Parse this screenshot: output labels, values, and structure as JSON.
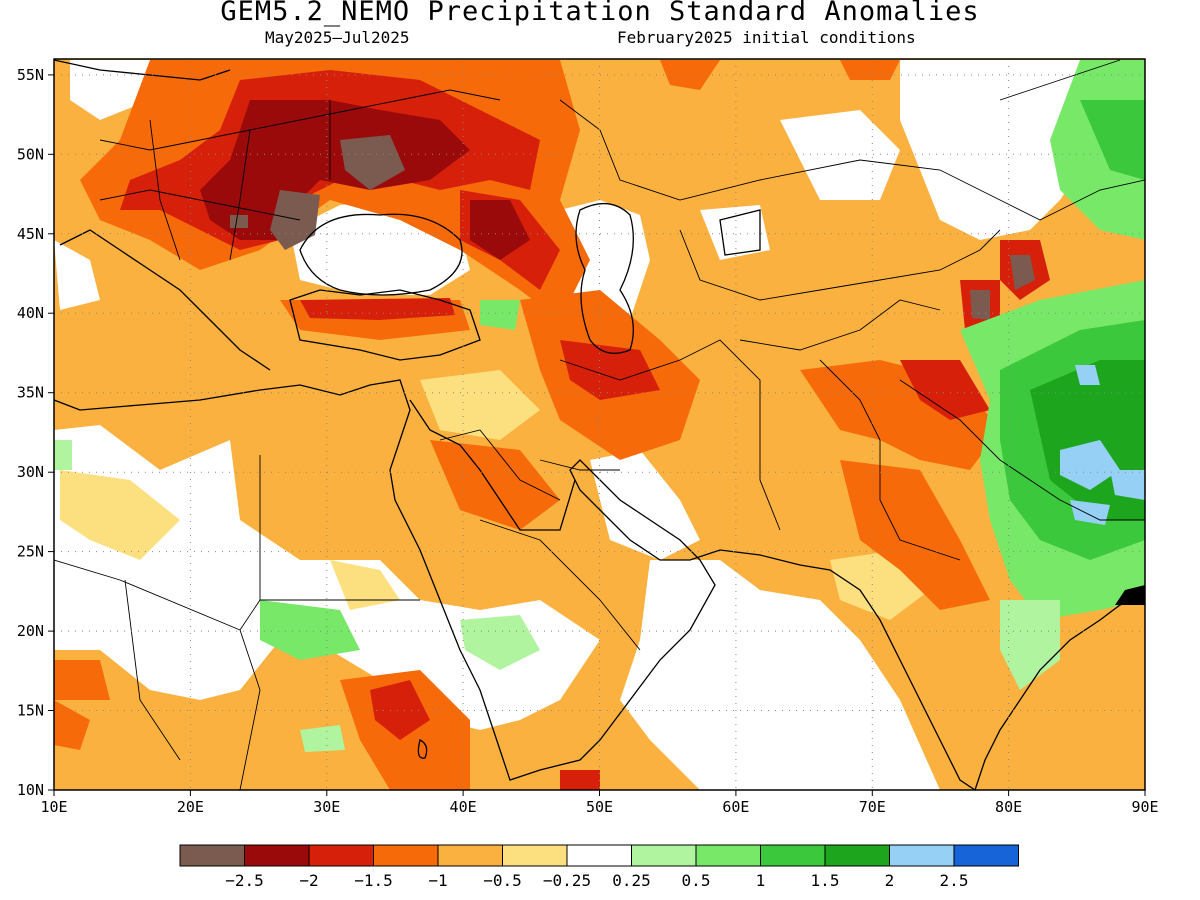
{
  "title": "GEM5.2_NEMO Precipitation Standard Anomalies",
  "subtitle_left": "May2025–Jul2025",
  "subtitle_right": "February2025 initial conditions",
  "map": {
    "lon_range": [
      10,
      90
    ],
    "lat_range": [
      10,
      56
    ],
    "x_ticks": [
      "10E",
      "20E",
      "30E",
      "40E",
      "50E",
      "60E",
      "70E",
      "80E",
      "90E"
    ],
    "y_ticks": [
      "10N",
      "15N",
      "20N",
      "25N",
      "30N",
      "35N",
      "40N",
      "45N",
      "50N",
      "55N"
    ],
    "grid": "dotted"
  },
  "colorbar": {
    "colors": [
      "#7b5a50",
      "#9b0a0a",
      "#d7200a",
      "#f66a0a",
      "#fbb140",
      "#fce080",
      "#ffffff",
      "#b0f4a0",
      "#78e868",
      "#3cc83c",
      "#1ea51e",
      "#96d0f5",
      "#1664d8"
    ],
    "labels": [
      "−2.5",
      "−2",
      "−1.5",
      "−1",
      "−0.5",
      "−0.25",
      "0.25",
      "0.5",
      "1",
      "1.5",
      "2",
      "2.5"
    ]
  }
}
